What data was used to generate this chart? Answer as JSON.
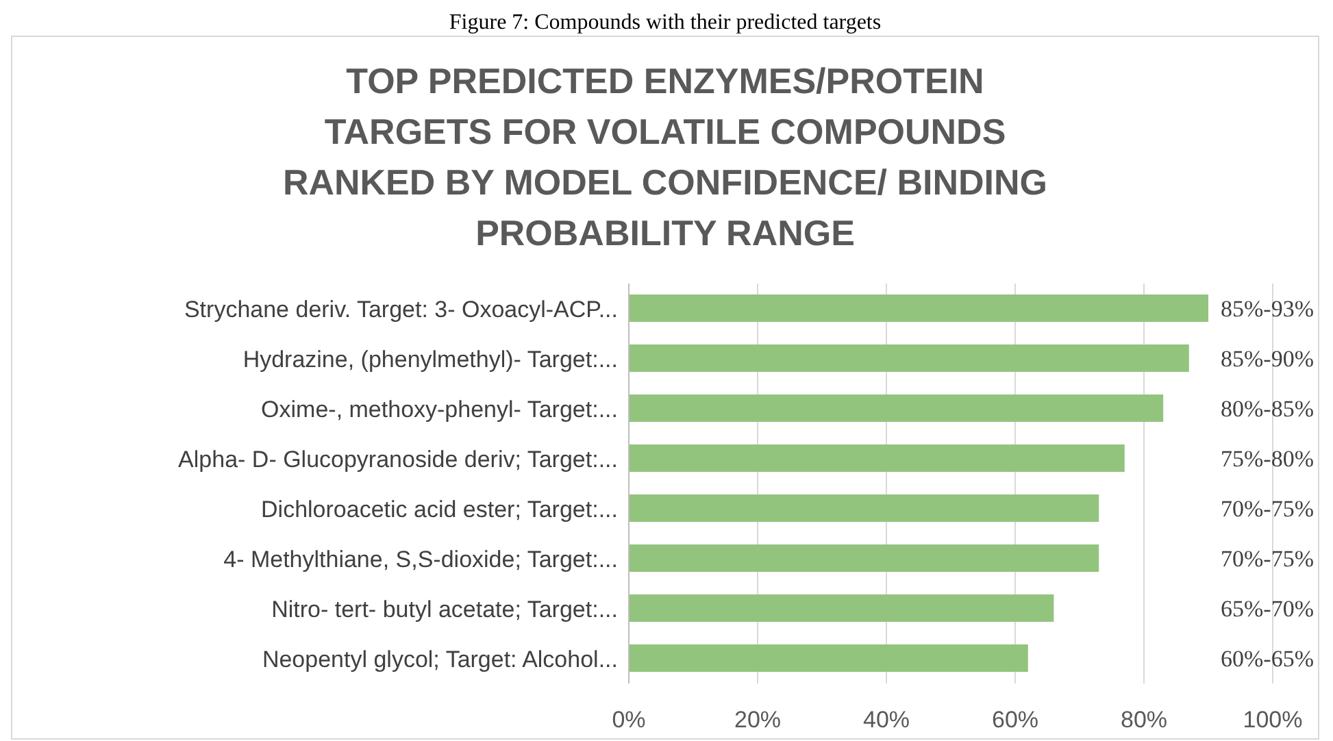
{
  "chart_data": {
    "type": "bar",
    "orientation": "horizontal",
    "title": "TOP PREDICTED ENZYMES/PROTEIN TARGETS FOR VOLATILE COMPOUNDS RANKED BY MODEL CONFIDENCE/ BINDING PROBABILITY RANGE",
    "annotations": [
      "Figure 7: Compounds with their predicted targets",
      "85%-93%",
      "85%-90%",
      "80%-85%",
      "75%-80%",
      "70%-75%",
      "70%-75%",
      "65%-70%",
      "60%-65%"
    ],
    "categories": [
      "Strychane deriv. Target: 3- Oxoacyl-ACP...",
      "Hydrazine, (phenylmethyl)- Target:...",
      "Oxime-, methoxy-phenyl- Target:...",
      "Alpha- D- Glucopyranoside deriv; Target:...",
      "Dichloroacetic acid ester; Target:...",
      "4- Methylthiane, S,S-dioxide; Target:...",
      "Nitro- tert- butyl acetate; Target:...",
      "Neopentyl glycol; Target: Alcohol..."
    ],
    "values": [
      90,
      87,
      83,
      77,
      73,
      73,
      66,
      62
    ],
    "color": "#93c47d",
    "xlim": [
      0,
      100
    ],
    "xticks": [
      {
        "value": 0,
        "label": "0%"
      },
      {
        "value": 20,
        "label": "20%"
      },
      {
        "value": 40,
        "label": "40%"
      },
      {
        "value": 60,
        "label": "60%"
      },
      {
        "value": 80,
        "label": "80%"
      },
      {
        "value": 100,
        "label": "100%"
      }
    ],
    "grid": "x"
  }
}
